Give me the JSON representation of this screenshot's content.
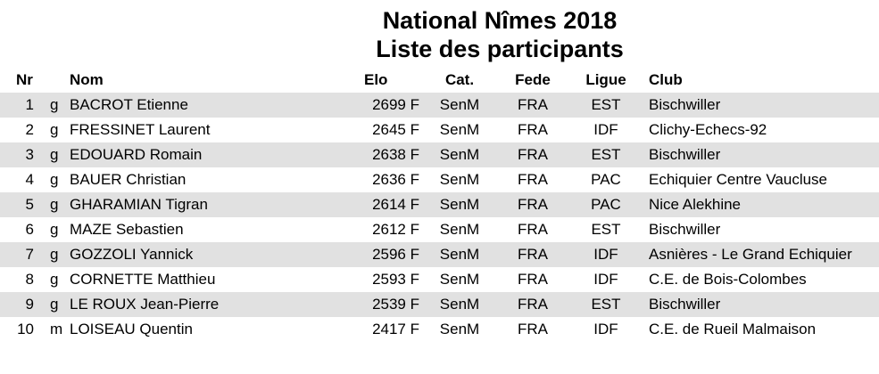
{
  "title_line1": "National Nîmes 2018",
  "title_line2": "Liste des participants",
  "headers": {
    "nr": "Nr",
    "nom": "Nom",
    "elo": "Elo",
    "cat": "Cat.",
    "fede": "Fede",
    "ligue": "Ligue",
    "club": "Club"
  },
  "rows": [
    {
      "nr": "1",
      "title": "g",
      "nom": "BACROT Etienne",
      "elo": "2699 F",
      "cat": "SenM",
      "fede": "FRA",
      "ligue": "EST",
      "club": "Bischwiller"
    },
    {
      "nr": "2",
      "title": "g",
      "nom": "FRESSINET Laurent",
      "elo": "2645 F",
      "cat": "SenM",
      "fede": "FRA",
      "ligue": "IDF",
      "club": "Clichy-Echecs-92"
    },
    {
      "nr": "3",
      "title": "g",
      "nom": "EDOUARD Romain",
      "elo": "2638 F",
      "cat": "SenM",
      "fede": "FRA",
      "ligue": "EST",
      "club": "Bischwiller"
    },
    {
      "nr": "4",
      "title": "g",
      "nom": "BAUER Christian",
      "elo": "2636 F",
      "cat": "SenM",
      "fede": "FRA",
      "ligue": "PAC",
      "club": "Echiquier Centre Vaucluse"
    },
    {
      "nr": "5",
      "title": "g",
      "nom": "GHARAMIAN Tigran",
      "elo": "2614 F",
      "cat": "SenM",
      "fede": "FRA",
      "ligue": "PAC",
      "club": "Nice Alekhine"
    },
    {
      "nr": "6",
      "title": "g",
      "nom": "MAZE Sebastien",
      "elo": "2612 F",
      "cat": "SenM",
      "fede": "FRA",
      "ligue": "EST",
      "club": "Bischwiller"
    },
    {
      "nr": "7",
      "title": "g",
      "nom": "GOZZOLI Yannick",
      "elo": "2596 F",
      "cat": "SenM",
      "fede": "FRA",
      "ligue": "IDF",
      "club": "Asnières - Le Grand Echiquier"
    },
    {
      "nr": "8",
      "title": "g",
      "nom": "CORNETTE Matthieu",
      "elo": "2593 F",
      "cat": "SenM",
      "fede": "FRA",
      "ligue": "IDF",
      "club": "C.E. de Bois-Colombes"
    },
    {
      "nr": "9",
      "title": "g",
      "nom": "LE ROUX Jean-Pierre",
      "elo": "2539 F",
      "cat": "SenM",
      "fede": "FRA",
      "ligue": "EST",
      "club": "Bischwiller"
    },
    {
      "nr": "10",
      "title": "m",
      "nom": "LOISEAU Quentin",
      "elo": "2417 F",
      "cat": "SenM",
      "fede": "FRA",
      "ligue": "IDF",
      "club": "C.E. de Rueil Malmaison"
    }
  ]
}
